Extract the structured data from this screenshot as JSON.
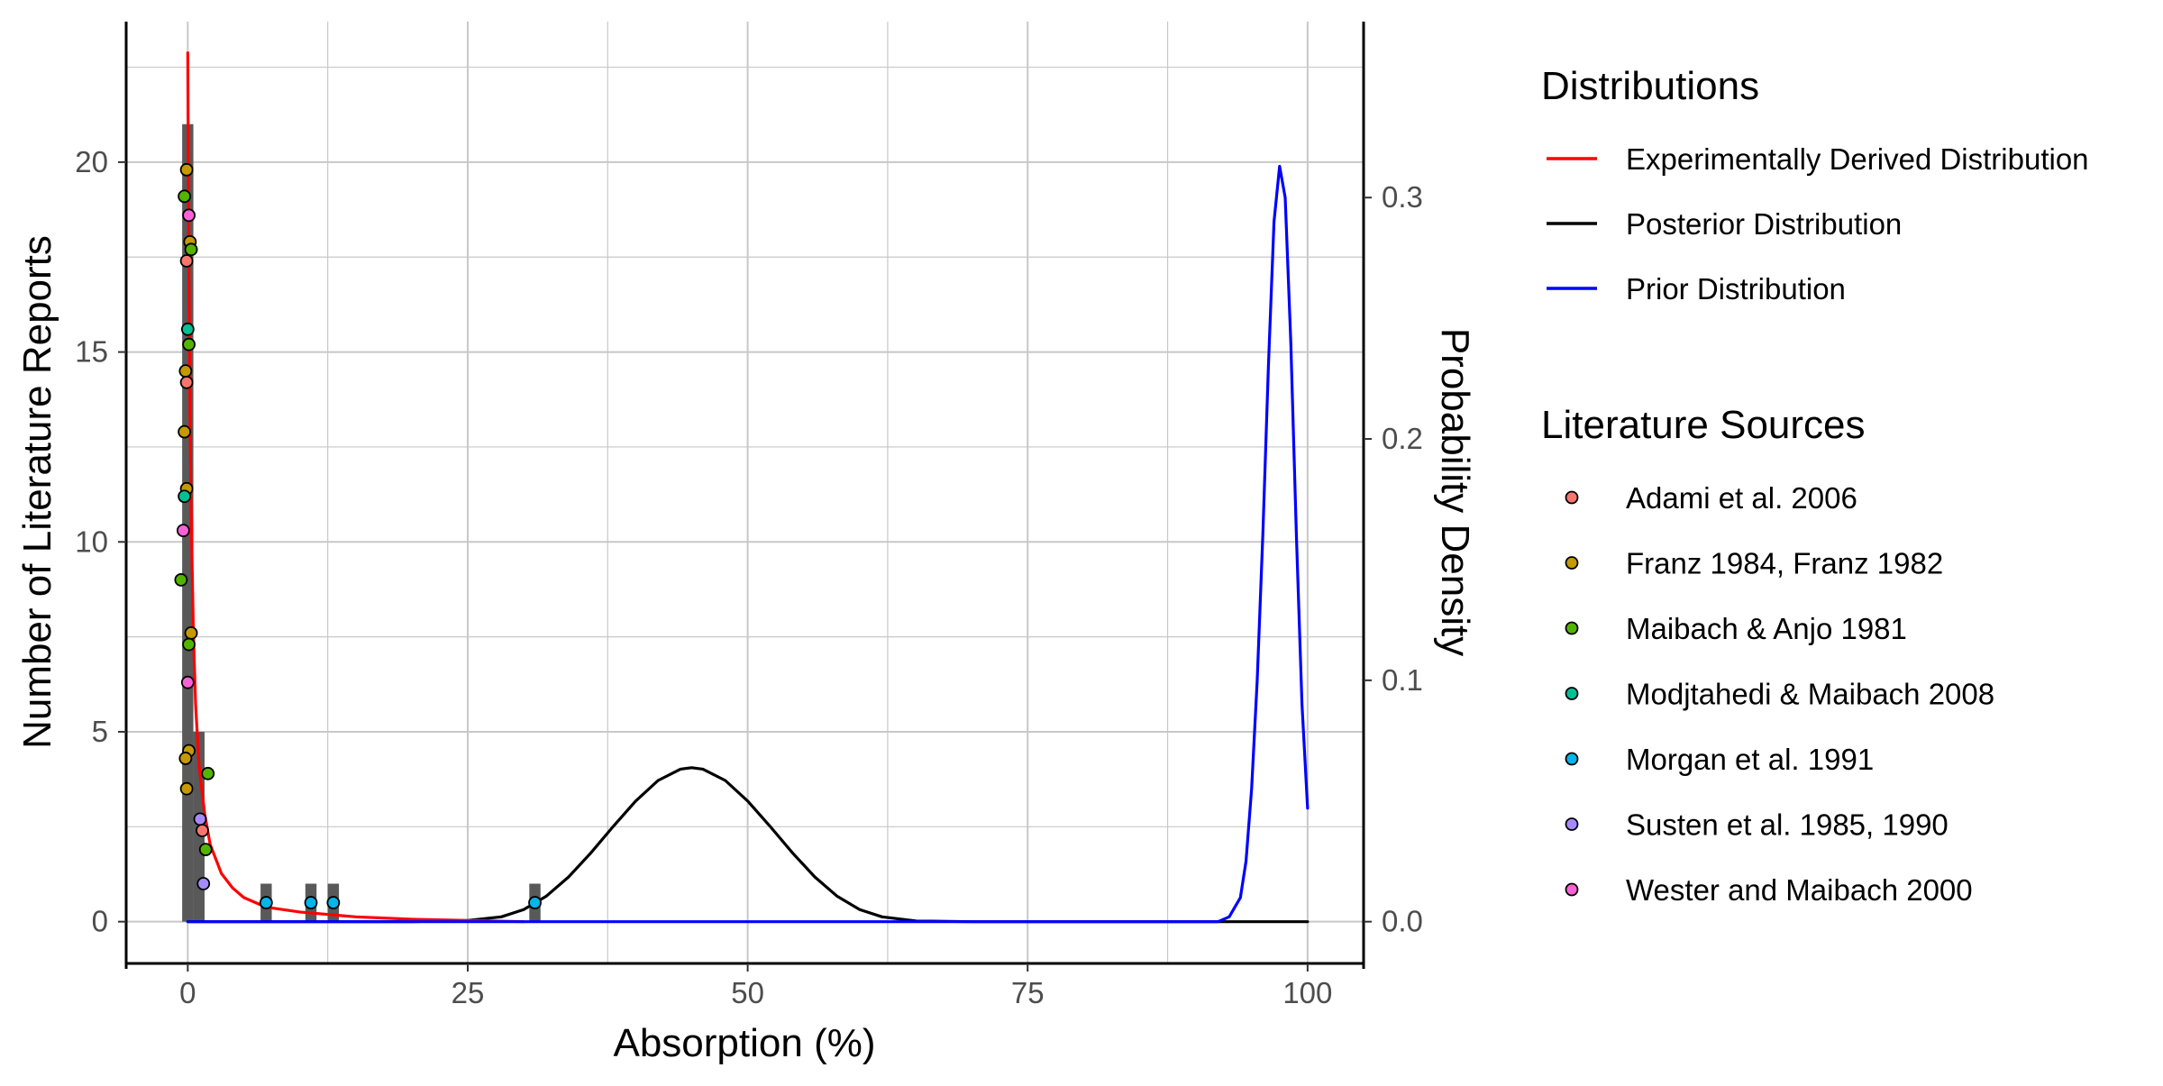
{
  "chart_data": {
    "type": "line",
    "xlabel": "Absorption (%)",
    "ylabel": "Number of Literature Reports",
    "y2label": "Probability Density",
    "xlim": [
      -5.5,
      105
    ],
    "ylim": [
      -1.1,
      23.7
    ],
    "y2lim": [
      -0.0173,
      0.3729
    ],
    "x_ticks": [
      0,
      25,
      50,
      75,
      100
    ],
    "y_ticks": [
      0,
      5,
      10,
      15,
      20
    ],
    "y2_ticks": [
      0.0,
      0.1,
      0.2,
      0.3
    ],
    "x_tick_labels": [
      "0",
      "25",
      "50",
      "75",
      "100"
    ],
    "y_tick_labels": [
      "0",
      "5",
      "10",
      "15",
      "20"
    ],
    "y2_tick_labels": [
      "0.0",
      "0.1",
      "0.2",
      "0.3"
    ],
    "grid": true,
    "histogram": {
      "bin_width": 1,
      "color": "#595959",
      "bins": [
        {
          "x": 0,
          "count": 21
        },
        {
          "x": 1,
          "count": 5
        },
        {
          "x": 7,
          "count": 1
        },
        {
          "x": 11,
          "count": 1
        },
        {
          "x": 13,
          "count": 1
        },
        {
          "x": 31,
          "count": 1
        }
      ]
    },
    "distributions_legend_title": "Distributions",
    "distributions": [
      {
        "name": "Experimentally Derived Distribution",
        "color": "#ff0000",
        "x": [
          0,
          0.1,
          0.2,
          0.3,
          0.5,
          0.7,
          1.0,
          1.5,
          2.0,
          3.0,
          4.0,
          5.0,
          7.0,
          10.0,
          15.0,
          20.0,
          25.0,
          30.0
        ],
        "y": [
          0.36,
          0.27,
          0.21,
          0.17,
          0.12,
          0.09,
          0.065,
          0.045,
          0.032,
          0.02,
          0.014,
          0.01,
          0.006,
          0.004,
          0.002,
          0.001,
          0.0005,
          0.0
        ]
      },
      {
        "name": "Posterior Distribution",
        "color": "#000000",
        "x": [
          0,
          10,
          20,
          25,
          28,
          30,
          32,
          34,
          36,
          38,
          40,
          42,
          44,
          45,
          46,
          48,
          50,
          52,
          54,
          56,
          58,
          60,
          62,
          65,
          70,
          80,
          90,
          100
        ],
        "y": [
          0,
          0,
          0,
          0.0005,
          0.002,
          0.005,
          0.0105,
          0.0185,
          0.0285,
          0.0395,
          0.05,
          0.0585,
          0.0632,
          0.0638,
          0.0632,
          0.0585,
          0.05,
          0.0395,
          0.0285,
          0.0185,
          0.0105,
          0.005,
          0.002,
          0.0003,
          0,
          0,
          0,
          0
        ]
      },
      {
        "name": "Prior Distribution",
        "color": "#0000ff",
        "x": [
          0,
          50,
          90,
          92,
          93,
          94,
          94.5,
          95,
          95.5,
          96,
          96.5,
          97,
          97.5,
          98,
          98.5,
          99,
          99.5,
          100
        ],
        "y": [
          0,
          0,
          0,
          0,
          0.002,
          0.01,
          0.025,
          0.055,
          0.1,
          0.16,
          0.23,
          0.29,
          0.313,
          0.3,
          0.24,
          0.16,
          0.09,
          0.047
        ]
      }
    ],
    "sources_legend_title": "Literature Sources",
    "sources": [
      {
        "name": "Adami et al. 2006",
        "color": "#f8766d"
      },
      {
        "name": "Franz 1984, Franz 1982",
        "color": "#c49a00"
      },
      {
        "name": "Maibach & Anjo 1981",
        "color": "#53b400"
      },
      {
        "name": "Modjtahedi & Maibach 2008",
        "color": "#00c094"
      },
      {
        "name": "Morgan et al. 1991",
        "color": "#00b6eb"
      },
      {
        "name": "Susten et al. 1985, 1990",
        "color": "#a58aff"
      },
      {
        "name": "Wester and Maibach 2000",
        "color": "#fb61d7"
      }
    ],
    "points": [
      {
        "x": -0.1,
        "y": 19.8,
        "source": "Franz 1984, Franz 1982"
      },
      {
        "x": -0.3,
        "y": 19.1,
        "source": "Maibach & Anjo 1981"
      },
      {
        "x": 0.1,
        "y": 18.6,
        "source": "Wester and Maibach 2000"
      },
      {
        "x": 0.2,
        "y": 17.9,
        "source": "Franz 1984, Franz 1982"
      },
      {
        "x": 0.3,
        "y": 17.7,
        "source": "Maibach & Anjo 1981"
      },
      {
        "x": -0.1,
        "y": 17.4,
        "source": "Adami et al. 2006"
      },
      {
        "x": 0.0,
        "y": 15.6,
        "source": "Modjtahedi & Maibach 2008"
      },
      {
        "x": 0.1,
        "y": 15.2,
        "source": "Maibach & Anjo 1981"
      },
      {
        "x": -0.2,
        "y": 14.5,
        "source": "Franz 1984, Franz 1982"
      },
      {
        "x": -0.1,
        "y": 14.2,
        "source": "Adami et al. 2006"
      },
      {
        "x": -0.3,
        "y": 12.9,
        "source": "Franz 1984, Franz 1982"
      },
      {
        "x": -0.1,
        "y": 11.4,
        "source": "Franz 1984, Franz 1982"
      },
      {
        "x": -0.3,
        "y": 11.2,
        "source": "Modjtahedi & Maibach 2008"
      },
      {
        "x": -0.4,
        "y": 10.3,
        "source": "Wester and Maibach 2000"
      },
      {
        "x": -0.6,
        "y": 9.0,
        "source": "Maibach & Anjo 1981"
      },
      {
        "x": 0.3,
        "y": 7.6,
        "source": "Franz 1984, Franz 1982"
      },
      {
        "x": 0.1,
        "y": 7.3,
        "source": "Maibach & Anjo 1981"
      },
      {
        "x": 0.0,
        "y": 6.3,
        "source": "Wester and Maibach 2000"
      },
      {
        "x": 0.1,
        "y": 4.5,
        "source": "Franz 1984, Franz 1982"
      },
      {
        "x": -0.2,
        "y": 4.3,
        "source": "Franz 1984, Franz 1982"
      },
      {
        "x": -0.1,
        "y": 3.5,
        "source": "Franz 1984, Franz 1982"
      },
      {
        "x": 1.8,
        "y": 3.9,
        "source": "Maibach & Anjo 1981"
      },
      {
        "x": 1.1,
        "y": 2.7,
        "source": "Susten et al. 1985, 1990"
      },
      {
        "x": 1.3,
        "y": 2.4,
        "source": "Adami et al. 2006"
      },
      {
        "x": 1.6,
        "y": 1.9,
        "source": "Maibach & Anjo 1981"
      },
      {
        "x": 1.4,
        "y": 1.0,
        "source": "Susten et al. 1985, 1990"
      },
      {
        "x": 7.0,
        "y": 0.5,
        "source": "Morgan et al. 1991"
      },
      {
        "x": 11.0,
        "y": 0.5,
        "source": "Morgan et al. 1991"
      },
      {
        "x": 13.0,
        "y": 0.5,
        "source": "Morgan et al. 1991"
      },
      {
        "x": 31.0,
        "y": 0.5,
        "source": "Morgan et al. 1991"
      }
    ]
  }
}
